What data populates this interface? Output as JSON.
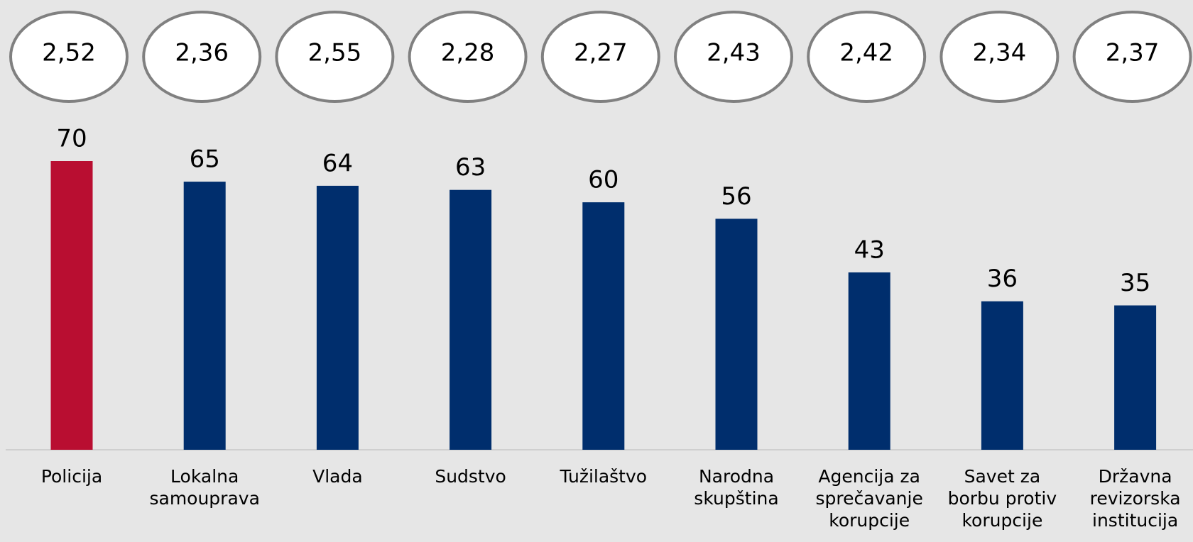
{
  "chart_data": {
    "type": "bar",
    "categories": [
      "Policija",
      "Lokalna samouprava",
      "Vlada",
      "Sudstvo",
      "Tužilaštvo",
      "Narodna skupština",
      "Agencija za sprečavanje korupcije",
      "Savet za borbu protiv korupcije",
      "Državna revizorska institucija"
    ],
    "values": [
      70,
      65,
      64,
      63,
      60,
      56,
      43,
      36,
      35
    ],
    "colors": [
      "#b90e31",
      "#002e6d",
      "#002e6d",
      "#002e6d",
      "#002e6d",
      "#002e6d",
      "#002e6d",
      "#002e6d",
      "#002e6d"
    ],
    "scores": {
      "values": [
        2.52,
        2.36,
        2.55,
        2.28,
        2.27,
        2.43,
        2.42,
        2.34,
        2.37
      ],
      "value_labels": [
        "2,52",
        "2,36",
        "2,55",
        "2,28",
        "2,27",
        "2,43",
        "2,42",
        "2,34",
        "2,37"
      ]
    },
    "ylim": [
      0,
      70
    ]
  }
}
